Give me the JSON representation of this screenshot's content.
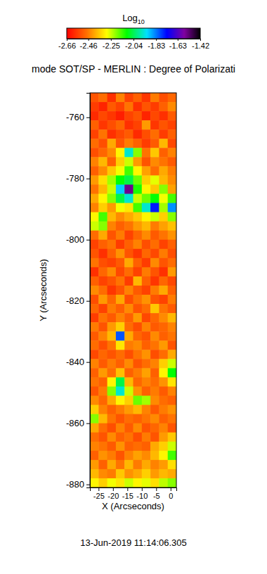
{
  "chart_data": {
    "type": "heatmap",
    "title": "mode SOT/SP - MERLIN : Degree of Polarizati",
    "x_label": "X (Arcseconds)",
    "y_label": "Y (Arcseconds)",
    "date": "13-Jun-2019 11:14:06.305",
    "xlim": [
      -28,
      2
    ],
    "ylim": [
      -881,
      -752
    ],
    "xticks": [
      -25,
      -20,
      -15,
      -10,
      -5,
      0
    ],
    "yticks": [
      -760,
      -780,
      -800,
      -820,
      -840,
      -860,
      -880
    ],
    "x": [
      -26.5,
      -23.5,
      -20.5,
      -17.5,
      -14.5,
      -11.5,
      -8.5,
      -5.5,
      -2.5,
      0.5
    ],
    "y": [
      -753.5,
      -756.5,
      -759.5,
      -762.5,
      -765.5,
      -768.5,
      -771.5,
      -774.5,
      -777.5,
      -780.5,
      -783.5,
      -786.5,
      -789.5,
      -792.5,
      -795.5,
      -798.5,
      -801.5,
      -804.5,
      -807.5,
      -810.5,
      -813.5,
      -816.5,
      -819.5,
      -822.5,
      -825.5,
      -828.5,
      -831.5,
      -834.5,
      -837.5,
      -840.5,
      -843.5,
      -846.5,
      -849.5,
      -852.5,
      -855.5,
      -858.5,
      -861.5,
      -864.5,
      -867.5,
      -870.5,
      -873.5,
      -876.5,
      -879.5
    ],
    "z": [
      [
        -2.52,
        -2.48,
        -2.58,
        -2.45,
        -2.55,
        -2.5,
        -2.57,
        -2.46,
        -2.53,
        -2.49
      ],
      [
        -2.56,
        -2.6,
        -2.51,
        -2.55,
        -2.47,
        -2.58,
        -2.52,
        -2.56,
        -2.5,
        -2.44
      ],
      [
        -2.59,
        -2.54,
        -2.57,
        -2.61,
        -2.55,
        -2.52,
        -2.6,
        -2.54,
        -2.58,
        -2.51
      ],
      [
        -2.5,
        -2.57,
        -2.53,
        -2.49,
        -2.58,
        -2.55,
        -2.42,
        -2.57,
        -2.52,
        -2.55
      ],
      [
        -2.55,
        -2.47,
        -2.58,
        -2.54,
        -2.51,
        -2.59,
        -2.53,
        -2.48,
        -2.56,
        -2.5
      ],
      [
        -2.48,
        -2.53,
        -2.4,
        -2.52,
        -2.46,
        -2.5,
        -2.56,
        -2.51,
        -2.38,
        -2.54
      ],
      [
        -2.53,
        -2.49,
        -2.44,
        -2.3,
        -1.95,
        -2.2,
        -2.47,
        -2.36,
        -2.5,
        -2.45
      ],
      [
        -2.45,
        -2.38,
        -2.5,
        -2.35,
        -2.25,
        -2.42,
        -2.52,
        -2.44,
        -2.47,
        -2.51
      ],
      [
        -2.5,
        -2.44,
        -2.36,
        -2.28,
        -2.15,
        -2.3,
        -2.41,
        -2.48,
        -2.4,
        -2.46
      ],
      [
        -2.42,
        -2.33,
        -2.22,
        -2.1,
        -2.05,
        -2.18,
        -2.35,
        -2.27,
        -2.38,
        -2.44
      ],
      [
        -2.47,
        -2.38,
        -2.25,
        -1.9,
        -1.55,
        -2.12,
        -2.3,
        -2.36,
        -2.2,
        -2.41
      ],
      [
        -2.4,
        -2.3,
        -2.2,
        -2.05,
        -1.95,
        -2.25,
        -2.18,
        -2.1,
        -2.28,
        -2.15
      ],
      [
        -2.45,
        -2.35,
        -2.42,
        -2.28,
        -2.32,
        -2.15,
        -1.95,
        -1.75,
        -2.22,
        -1.85
      ],
      [
        -2.3,
        -2.15,
        -2.38,
        -2.44,
        -2.4,
        -2.36,
        -2.3,
        -2.25,
        -2.35,
        -2.2
      ],
      [
        -2.25,
        -2.2,
        -2.45,
        -2.5,
        -2.47,
        -2.42,
        -2.38,
        -2.46,
        -2.41,
        -2.37
      ],
      [
        -2.48,
        -2.4,
        -2.52,
        -2.46,
        -2.55,
        -2.49,
        -2.44,
        -2.51,
        -2.47,
        -2.43
      ],
      [
        -2.55,
        -2.5,
        -2.47,
        -2.56,
        -2.5,
        -2.45,
        -2.53,
        -2.48,
        -2.55,
        -2.5
      ],
      [
        -2.52,
        -2.58,
        -2.5,
        -2.43,
        -2.52,
        -2.57,
        -2.49,
        -2.54,
        -2.46,
        -2.53
      ],
      [
        -2.47,
        -2.53,
        -2.55,
        -2.51,
        -2.4,
        -2.5,
        -2.56,
        -2.44,
        -2.52,
        -2.48
      ],
      [
        -2.58,
        -2.49,
        -2.44,
        -2.54,
        -2.48,
        -2.55,
        -2.46,
        -2.52,
        -2.58,
        -2.42
      ],
      [
        -2.5,
        -2.55,
        -2.52,
        -2.47,
        -2.56,
        -2.38,
        -2.5,
        -2.57,
        -2.49,
        -2.54
      ],
      [
        -2.44,
        -2.48,
        -2.57,
        -2.52,
        -2.45,
        -2.51,
        -2.55,
        -2.46,
        -2.4,
        -2.5
      ],
      [
        -2.53,
        -2.42,
        -2.49,
        -2.4,
        -2.53,
        -2.47,
        -2.43,
        -2.52,
        -2.55,
        -2.46
      ],
      [
        -2.49,
        -2.55,
        -2.46,
        -2.5,
        -2.44,
        -2.52,
        -2.48,
        -2.36,
        -2.47,
        -2.51
      ],
      [
        -2.56,
        -2.47,
        -2.51,
        -2.45,
        -2.5,
        -2.42,
        -2.54,
        -2.49,
        -2.44,
        -2.38
      ],
      [
        -2.46,
        -2.52,
        -2.42,
        -2.35,
        -2.48,
        -2.53,
        -2.45,
        -2.51,
        -2.49,
        -2.45
      ],
      [
        -2.51,
        -2.45,
        -2.38,
        -1.8,
        -2.4,
        -2.49,
        -2.52,
        -2.44,
        -2.5,
        -2.47
      ],
      [
        -2.48,
        -2.53,
        -2.47,
        -2.32,
        -2.46,
        -2.44,
        -2.5,
        -2.47,
        -2.42,
        -2.52
      ],
      [
        -2.54,
        -2.49,
        -2.52,
        -2.48,
        -2.53,
        -2.47,
        -2.43,
        -2.53,
        -2.48,
        -2.4
      ],
      [
        -2.45,
        -2.51,
        -2.46,
        -2.5,
        -2.44,
        -2.52,
        -2.48,
        -2.45,
        -2.35,
        -2.25
      ],
      [
        -2.5,
        -2.42,
        -2.48,
        -2.37,
        -2.5,
        -2.46,
        -2.41,
        -2.5,
        -2.3,
        -2.1
      ],
      [
        -2.47,
        -2.5,
        -2.3,
        -2.05,
        -2.38,
        -2.49,
        -2.45,
        -2.48,
        -2.43,
        -2.32
      ],
      [
        -2.52,
        -2.46,
        -2.2,
        -1.95,
        -2.25,
        -2.43,
        -2.5,
        -2.46,
        -2.51,
        -2.45
      ],
      [
        -2.44,
        -2.49,
        -2.4,
        -2.3,
        -2.35,
        -2.18,
        -2.22,
        -2.44,
        -2.48,
        -2.5
      ],
      [
        -2.35,
        -2.45,
        -2.5,
        -2.46,
        -2.42,
        -2.38,
        -2.45,
        -2.51,
        -2.46,
        -2.43
      ],
      [
        -2.2,
        -2.38,
        -2.47,
        -2.52,
        -2.48,
        -2.5,
        -2.47,
        -2.44,
        -2.5,
        -2.47
      ],
      [
        -2.4,
        -2.48,
        -2.53,
        -2.45,
        -2.51,
        -2.44,
        -2.52,
        -2.49,
        -2.45,
        -2.52
      ],
      [
        -2.48,
        -2.52,
        -2.44,
        -2.5,
        -2.47,
        -2.53,
        -2.46,
        -2.52,
        -2.42,
        -2.36
      ],
      [
        -2.45,
        -2.47,
        -2.51,
        -2.43,
        -2.5,
        -2.48,
        -2.5,
        -2.4,
        -2.35,
        -2.25
      ],
      [
        -2.5,
        -2.43,
        -2.46,
        -2.52,
        -2.45,
        -2.41,
        -2.44,
        -2.38,
        -2.3,
        -2.15
      ],
      [
        -2.42,
        -2.5,
        -2.4,
        -2.47,
        -2.38,
        -2.46,
        -2.4,
        -2.45,
        -2.42,
        -2.33
      ],
      [
        -2.38,
        -2.44,
        -2.46,
        -2.36,
        -2.43,
        -2.4,
        -2.35,
        -2.42,
        -2.38,
        -2.4
      ],
      [
        -2.3,
        -2.35,
        -2.28,
        -2.32,
        -2.25,
        -2.3,
        -2.27,
        -2.33,
        -2.24,
        -2.2
      ]
    ],
    "colorbar": {
      "title": "Log",
      "title_subscript": "10",
      "range": [
        -2.66,
        -1.42
      ],
      "ticks": [
        -2.66,
        -2.46,
        -2.25,
        -2.04,
        -1.83,
        -1.63,
        -1.42
      ]
    }
  }
}
